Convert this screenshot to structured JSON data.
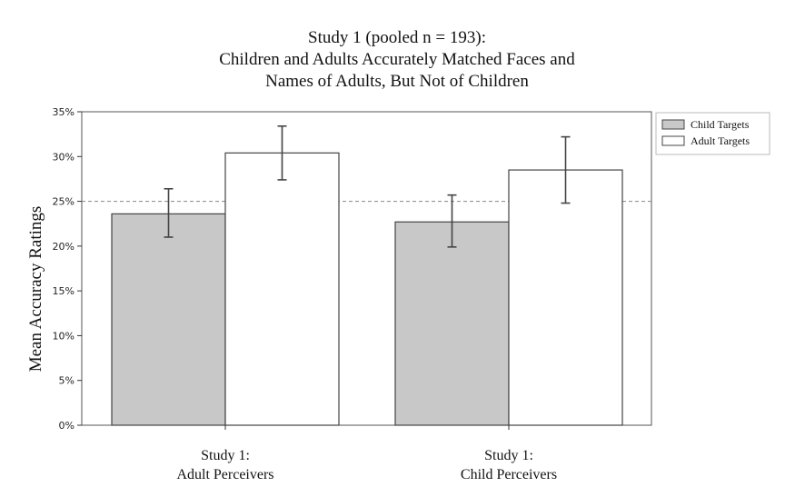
{
  "chart_data": {
    "type": "bar",
    "title": [
      "Study 1 (pooled n = 193):",
      "Children and Adults Accurately Matched Faces and",
      "Names of Adults, But Not of Children"
    ],
    "xlabel": "",
    "ylabel": "Mean Accuracy Ratings",
    "ylim": [
      0,
      35
    ],
    "yticks": [
      0,
      5,
      10,
      15,
      20,
      25,
      30,
      35
    ],
    "ytick_labels": [
      "0%",
      "5%",
      "10%",
      "15%",
      "20%",
      "25%",
      "30%",
      "35%"
    ],
    "categories": [
      [
        "Study 1:",
        "Adult Perceivers"
      ],
      [
        "Study 1:",
        "Child Perceivers"
      ]
    ],
    "series": [
      {
        "name": "Child Targets",
        "color": "#c8c8c8",
        "values": [
          23.6,
          22.7
        ],
        "err_low": [
          21.0,
          19.9
        ],
        "err_high": [
          26.4,
          25.7
        ]
      },
      {
        "name": "Adult Targets",
        "color": "#ffffff",
        "values": [
          30.4,
          28.5
        ],
        "err_low": [
          27.4,
          24.8
        ],
        "err_high": [
          33.4,
          32.2
        ]
      }
    ],
    "reference_line": 25,
    "reference_line_style": "dashed",
    "legend_position": "right",
    "grid": false
  }
}
